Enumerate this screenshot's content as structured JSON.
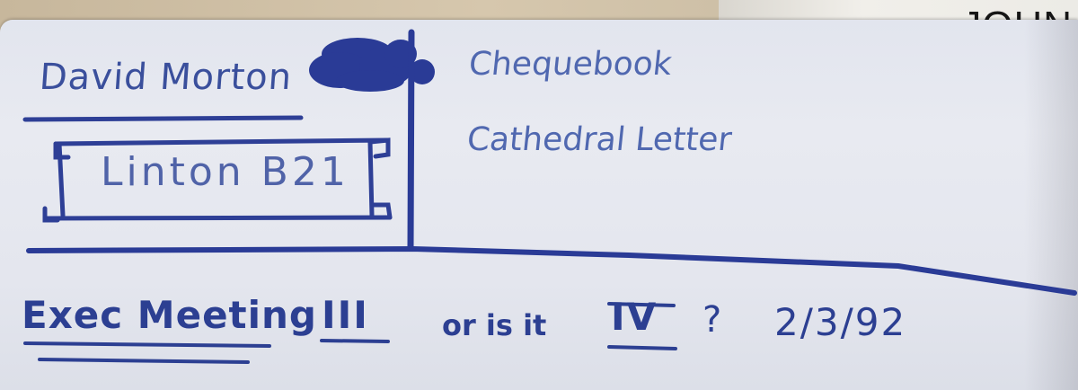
{
  "book": {
    "title": "JOHN"
  },
  "note": {
    "name": "David Morton",
    "place": "Linton B21",
    "items": [
      "Chequebook",
      "Cathedral Letter"
    ],
    "meeting": {
      "label": "Exec Meeting",
      "numeral_a": "III",
      "question": "or is it",
      "numeral_b": "IV",
      "qmark": "?",
      "date": "2/3/92"
    }
  },
  "colors": {
    "ink": "#2c3f92",
    "ink_light": "#5068b0",
    "paper": "#e4e6ee"
  }
}
